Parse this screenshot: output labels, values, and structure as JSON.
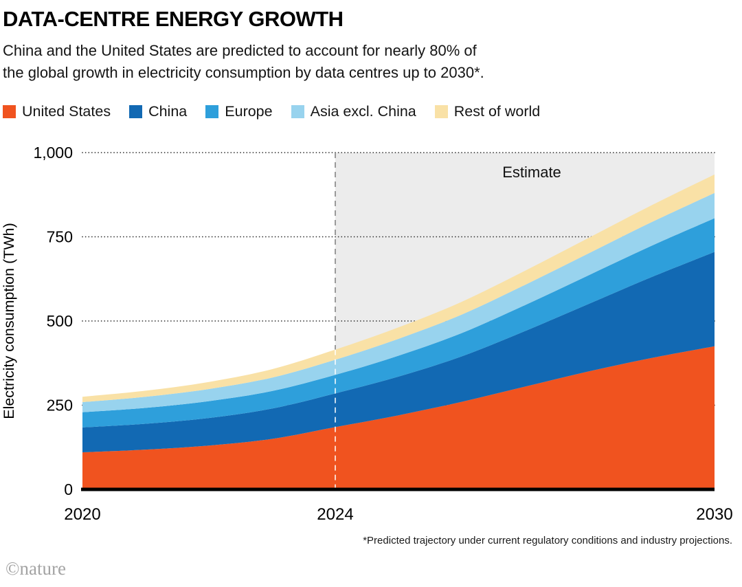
{
  "header": {
    "title": "DATA-CENTRE ENERGY GROWTH",
    "subtitle_line1": "China and the United States are predicted to account for nearly 80% of",
    "subtitle_line2": "the global growth in electricity consumption by data centres up to 2030*."
  },
  "chart_data": {
    "type": "area",
    "stacked": true,
    "title": "Data-centre energy growth",
    "ylabel": "Electricity consumption (TWh)",
    "xlabel": "",
    "ylim": [
      0,
      1000
    ],
    "yticks": [
      0,
      250,
      500,
      750,
      1000
    ],
    "ytick_labels": [
      "0",
      "250",
      "500",
      "750",
      "1,000"
    ],
    "xticks": [
      2020,
      2024,
      2030
    ],
    "grid": "dotted-horizontal",
    "x": [
      2020,
      2021,
      2022,
      2023,
      2024,
      2025,
      2026,
      2027,
      2028,
      2029,
      2030
    ],
    "series": [
      {
        "name": "United States",
        "color": "#F0531F",
        "values": [
          110,
          118,
          130,
          150,
          185,
          220,
          260,
          305,
          350,
          390,
          425
        ]
      },
      {
        "name": "China",
        "color": "#1269B3",
        "values": [
          74,
          77,
          82,
          90,
          100,
          115,
          135,
          165,
          200,
          240,
          280
        ]
      },
      {
        "name": "Europe",
        "color": "#2E9FDB",
        "values": [
          45,
          47,
          50,
          52,
          55,
          62,
          69,
          77,
          85,
          93,
          100
        ]
      },
      {
        "name": "Asia excl. China",
        "color": "#98D3EE",
        "values": [
          30,
          33,
          36,
          40,
          45,
          50,
          55,
          60,
          65,
          70,
          75
        ]
      },
      {
        "name": "Rest of world",
        "color": "#F9E1A6",
        "values": [
          16,
          18,
          21,
          25,
          30,
          34,
          38,
          42,
          46,
          50,
          55
        ]
      }
    ],
    "estimate": {
      "label": "Estimate",
      "from": 2024,
      "to": 2030,
      "fill": "#ECECEC"
    }
  },
  "footnote": "*Predicted trajectory under current regulatory conditions and industry projections.",
  "branding": "©nature"
}
